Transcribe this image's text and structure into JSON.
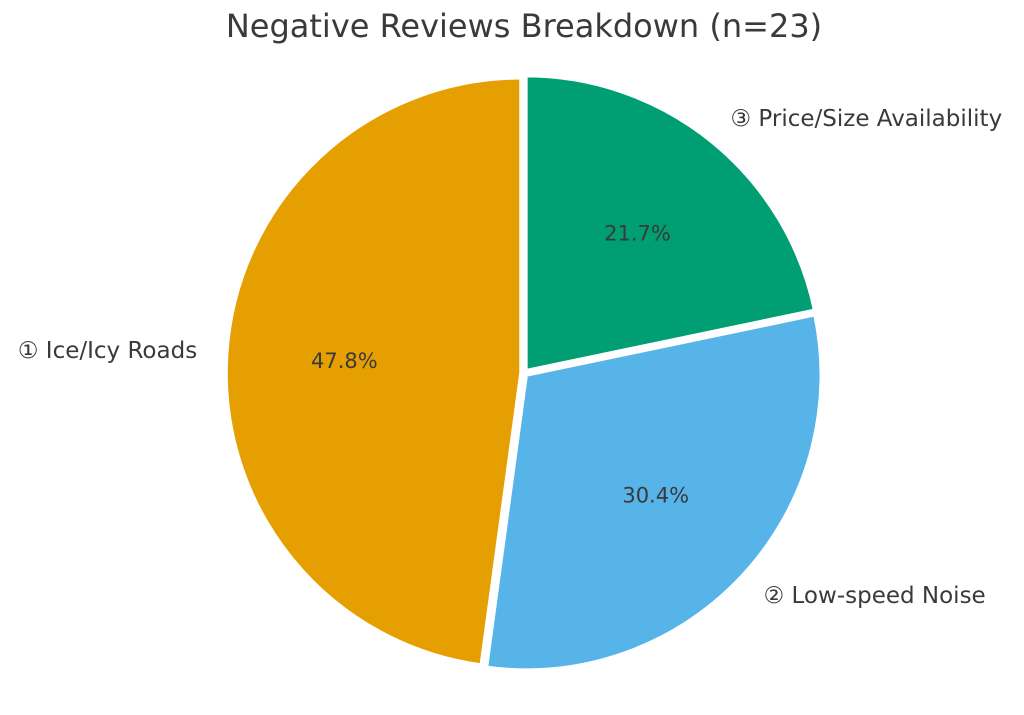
{
  "chart_data": {
    "type": "pie",
    "title": "Negative Reviews Breakdown (n=23)",
    "n_total_shown_in_title": 23,
    "start_angle": "top",
    "direction": "clockwise",
    "legend": "none",
    "background": "#ffffff",
    "text_color": "#3a3a3a",
    "wedge_edge_color": "#ffffff",
    "slices": [
      {
        "label": "③ Price/Size Availability",
        "pct": 21.7,
        "pct_label": "21.7%",
        "color": "#009E73"
      },
      {
        "label": "② Low-speed Noise",
        "pct": 30.4,
        "pct_label": "30.4%",
        "color": "#56B4E9"
      },
      {
        "label": "① Ice/Icy Roads",
        "pct": 47.8,
        "pct_label": "47.8%",
        "color": "#E69F00"
      }
    ]
  }
}
